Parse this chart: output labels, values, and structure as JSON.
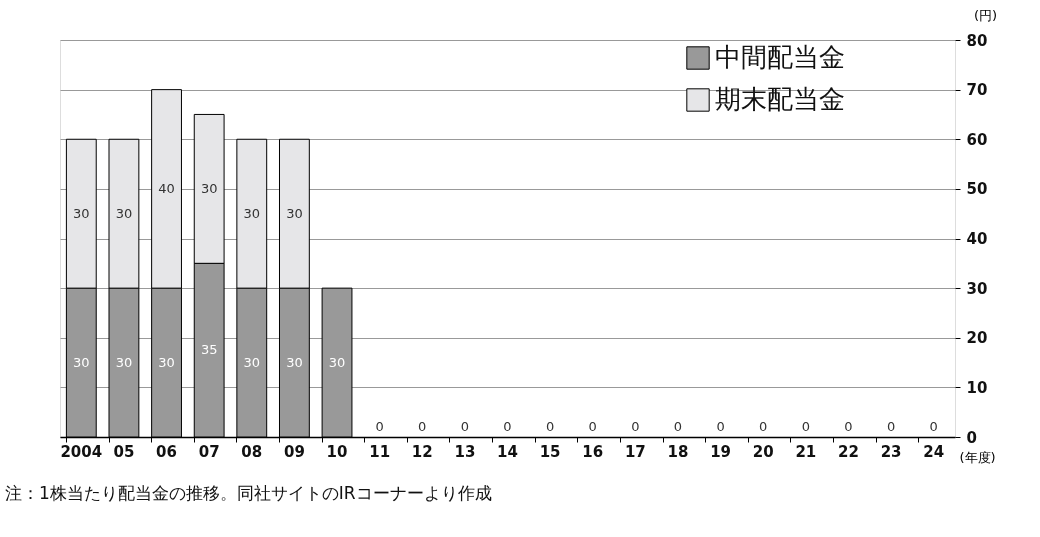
{
  "chart_data": {
    "type": "bar",
    "stacked": true,
    "categories": [
      "2004",
      "05",
      "06",
      "07",
      "08",
      "09",
      "10",
      "11",
      "12",
      "13",
      "14",
      "15",
      "16",
      "17",
      "18",
      "19",
      "20",
      "21",
      "22",
      "23",
      "24"
    ],
    "series": [
      {
        "name": "中間配当金",
        "color": "#999999",
        "values": [
          30,
          30,
          30,
          35,
          30,
          30,
          30,
          0,
          0,
          0,
          0,
          0,
          0,
          0,
          0,
          0,
          0,
          0,
          0,
          0,
          0
        ],
        "value_labels": [
          "30",
          "30",
          "30",
          "35",
          "30",
          "30",
          "30",
          "0",
          "0",
          "0",
          "0",
          "0",
          "0",
          "0",
          "0",
          "0",
          "0",
          "0",
          "0",
          "0",
          "0"
        ]
      },
      {
        "name": "期末配当金",
        "color": "#e6e6e8",
        "values": [
          30,
          30,
          40,
          30,
          30,
          30,
          null,
          null,
          null,
          null,
          null,
          null,
          null,
          null,
          null,
          null,
          null,
          null,
          null,
          null,
          null
        ],
        "value_labels": [
          "30",
          "30",
          "40",
          "30",
          "30",
          "30",
          null,
          null,
          null,
          null,
          null,
          null,
          null,
          null,
          null,
          null,
          null,
          null,
          null,
          null,
          null
        ]
      }
    ],
    "ylabel": "(円)",
    "xlabel": "(年度)",
    "ylim": [
      0,
      80
    ],
    "yticks": [
      0,
      10,
      20,
      30,
      40,
      50,
      60,
      70,
      80
    ],
    "grid": "y",
    "legend": "top right",
    "annotations": [
      "注：1株当たり配当金の推移。同社サイトのIRコーナーより作成"
    ]
  }
}
